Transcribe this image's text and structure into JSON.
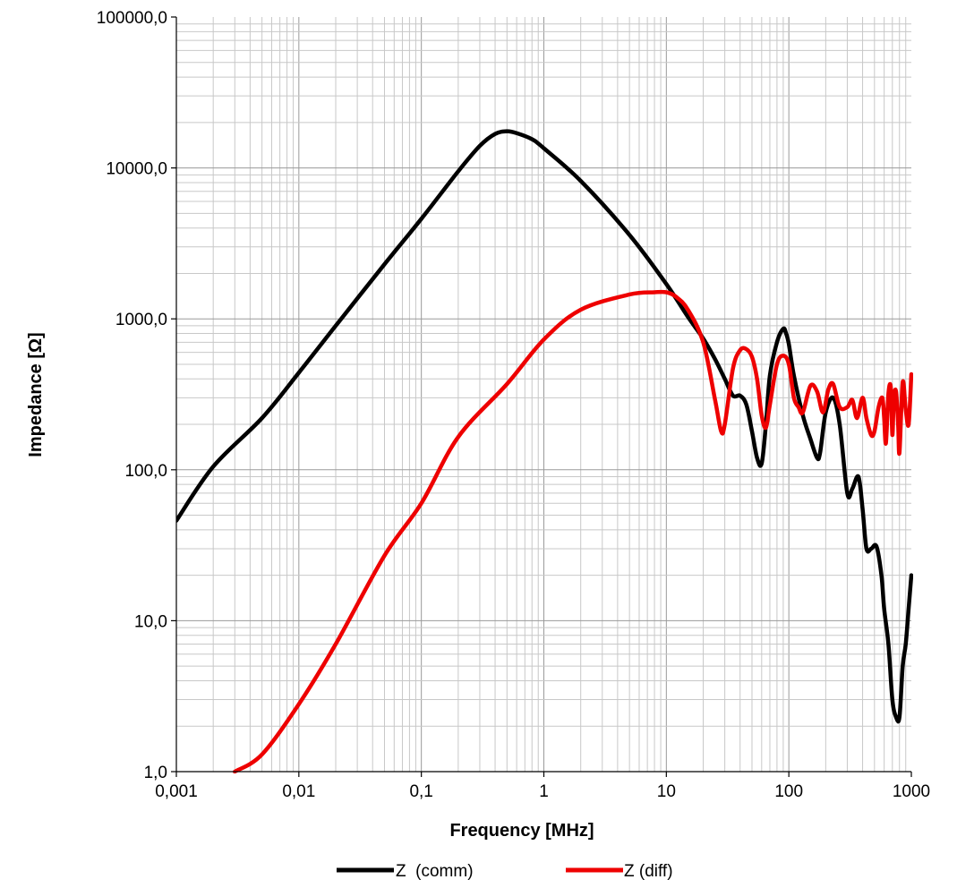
{
  "chart_data": {
    "type": "line",
    "title": "",
    "xlabel": "Frequency  [MHz]",
    "ylabel": "Impedance [Ω]",
    "x_scale": "log",
    "y_scale": "log",
    "xlim": [
      0.001,
      1000
    ],
    "ylim": [
      1,
      100000
    ],
    "grid": true,
    "legend_position": "bottom",
    "x_tick_labels": [
      "0,001",
      "0,01",
      "0,1",
      "1",
      "10",
      "100",
      "1000"
    ],
    "y_tick_labels": [
      "1,0",
      "10,0",
      "100,0",
      "1000,0",
      "10000,0",
      "100000,0"
    ],
    "series": [
      {
        "name": "Z  (comm)",
        "color": "#000000",
        "x": [
          0.001,
          0.002,
          0.005,
          0.01,
          0.02,
          0.05,
          0.1,
          0.2,
          0.3,
          0.4,
          0.5,
          0.6,
          0.8,
          1,
          2,
          5,
          10,
          15,
          20,
          25,
          30,
          35,
          40,
          45,
          50,
          55,
          60,
          65,
          70,
          80,
          90,
          95,
          100,
          110,
          130,
          150,
          170,
          180,
          200,
          230,
          260,
          300,
          330,
          370,
          400,
          430,
          470,
          520,
          570,
          600,
          650,
          700,
          750,
          800,
          850,
          900,
          950,
          1000
        ],
        "y": [
          46,
          105,
          220,
          440,
          900,
          2300,
          4600,
          9500,
          14000,
          16800,
          17500,
          17000,
          15500,
          13500,
          8200,
          3600,
          1700,
          1030,
          740,
          540,
          400,
          310,
          310,
          270,
          180,
          120,
          110,
          200,
          420,
          700,
          860,
          800,
          680,
          420,
          230,
          160,
          120,
          130,
          240,
          300,
          200,
          70,
          75,
          90,
          55,
          30,
          30,
          31,
          20,
          12,
          7,
          3,
          2.3,
          2.3,
          5,
          7,
          12,
          20
        ]
      },
      {
        "name": "Z (diff)",
        "color": "#ee0000",
        "x": [
          0.003,
          0.005,
          0.01,
          0.02,
          0.05,
          0.1,
          0.2,
          0.5,
          1,
          2,
          5,
          8,
          10,
          12,
          15,
          20,
          25,
          28,
          30,
          35,
          40,
          45,
          50,
          55,
          60,
          65,
          70,
          80,
          90,
          100,
          110,
          120,
          130,
          150,
          170,
          190,
          210,
          230,
          260,
          300,
          330,
          360,
          400,
          430,
          470,
          500,
          540,
          580,
          600,
          620,
          650,
          680,
          700,
          720,
          750,
          780,
          800,
          850,
          900,
          950,
          1000
        ],
        "y": [
          1,
          1.3,
          2.8,
          7,
          27,
          60,
          165,
          370,
          730,
          1150,
          1450,
          1500,
          1500,
          1400,
          1150,
          700,
          290,
          180,
          200,
          470,
          620,
          630,
          560,
          400,
          230,
          190,
          270,
          500,
          570,
          500,
          300,
          260,
          240,
          360,
          330,
          240,
          340,
          370,
          260,
          260,
          290,
          220,
          300,
          220,
          170,
          180,
          260,
          300,
          220,
          150,
          320,
          350,
          170,
          300,
          330,
          200,
          130,
          380,
          250,
          200,
          430
        ]
      }
    ]
  }
}
